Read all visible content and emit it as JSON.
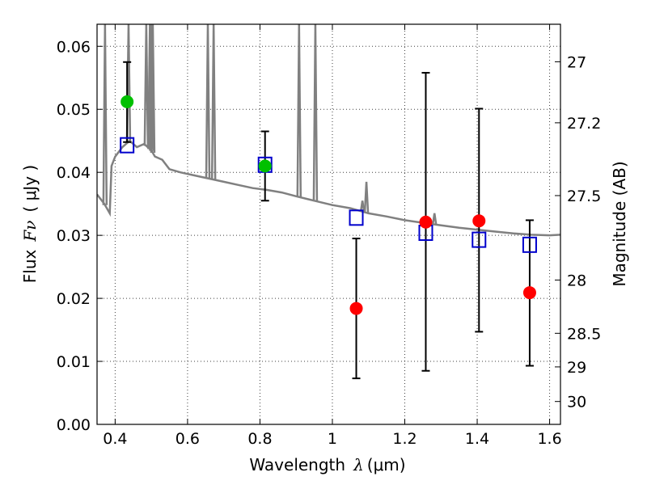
{
  "chart_data": {
    "type": "scatter",
    "xlabel": "Wavelength",
    "xlabel_symbol": "λ",
    "xlabel_unit": "(μm)",
    "ylabel": "Flux",
    "ylabel_symbol": "Fν",
    "ylabel_unit": "( μJy )",
    "ylabel_right": "Magnitude (AB)",
    "xlim": [
      0.35,
      1.63
    ],
    "ylim": [
      0.0,
      0.0635
    ],
    "x_ticks": [
      0.4,
      0.6,
      0.8,
      1.0,
      1.2,
      1.4,
      1.6
    ],
    "x_tick_labels": [
      "0.4",
      "0.6",
      "0.8",
      "1",
      "1.2",
      "1.4",
      "1.6"
    ],
    "y_ticks": [
      0.0,
      0.01,
      0.02,
      0.03,
      0.04,
      0.05,
      0.06
    ],
    "y_tick_labels": [
      "0.00",
      "0.01",
      "0.02",
      "0.03",
      "0.04",
      "0.05",
      "0.06"
    ],
    "right_ticks": [
      {
        "mag": 27,
        "label": "27"
      },
      {
        "mag": 27.2,
        "label": "27.2"
      },
      {
        "mag": 27.5,
        "label": "27.5"
      },
      {
        "mag": 28,
        "label": "28"
      },
      {
        "mag": 28.5,
        "label": "28.5"
      },
      {
        "mag": 29,
        "label": "29"
      },
      {
        "mag": 30,
        "label": "30"
      }
    ],
    "grid": true,
    "series": [
      {
        "name": "model_spectrum",
        "style": "line",
        "color": "#808080",
        "points": [
          [
            0.35,
            0.0365
          ],
          [
            0.37,
            0.035
          ],
          [
            0.385,
            0.0335
          ],
          [
            0.39,
            0.041
          ],
          [
            0.4,
            0.0425
          ],
          [
            0.42,
            0.044
          ],
          [
            0.44,
            0.045
          ],
          [
            0.46,
            0.044
          ],
          [
            0.48,
            0.0445
          ],
          [
            0.5,
            0.0435
          ],
          [
            0.51,
            0.0425
          ],
          [
            0.53,
            0.042
          ],
          [
            0.55,
            0.0405
          ],
          [
            0.58,
            0.04
          ],
          [
            0.62,
            0.0395
          ],
          [
            0.66,
            0.039
          ],
          [
            0.7,
            0.0385
          ],
          [
            0.74,
            0.038
          ],
          [
            0.78,
            0.0375
          ],
          [
            0.82,
            0.0372
          ],
          [
            0.86,
            0.0368
          ],
          [
            0.9,
            0.0362
          ],
          [
            0.95,
            0.0355
          ],
          [
            1.0,
            0.0348
          ],
          [
            1.05,
            0.0343
          ],
          [
            1.1,
            0.0335
          ],
          [
            1.15,
            0.033
          ],
          [
            1.2,
            0.0324
          ],
          [
            1.25,
            0.032
          ],
          [
            1.3,
            0.0316
          ],
          [
            1.35,
            0.0312
          ],
          [
            1.4,
            0.0309
          ],
          [
            1.45,
            0.0306
          ],
          [
            1.5,
            0.0303
          ],
          [
            1.55,
            0.0301
          ],
          [
            1.6,
            0.03
          ],
          [
            1.63,
            0.0301
          ]
        ]
      },
      {
        "name": "emission_lines",
        "style": "spikes",
        "color": "#808080",
        "lines": [
          {
            "x": 0.372,
            "peak": 0.0635
          },
          {
            "x": 0.437,
            "peak": 0.0635
          },
          {
            "x": 0.486,
            "peak": 0.0635
          },
          {
            "x": 0.496,
            "peak": 0.0635
          },
          {
            "x": 0.501,
            "peak": 0.0635
          },
          {
            "x": 0.504,
            "peak": 0.0635
          },
          {
            "x": 0.656,
            "peak": 0.0635
          },
          {
            "x": 0.672,
            "peak": 0.0635
          },
          {
            "x": 0.908,
            "peak": 0.0635
          },
          {
            "x": 0.953,
            "peak": 0.0635
          },
          {
            "x": 1.083,
            "peak": 0.0355
          },
          {
            "x": 1.094,
            "peak": 0.0385
          },
          {
            "x": 1.282,
            "peak": 0.0335
          }
        ]
      },
      {
        "name": "model_photometry",
        "style": "open_square",
        "color": "#0000cc",
        "points": [
          [
            0.433,
            0.0443
          ],
          [
            0.814,
            0.0412
          ],
          [
            1.066,
            0.0328
          ],
          [
            1.258,
            0.0304
          ],
          [
            1.405,
            0.0293
          ],
          [
            1.545,
            0.0285
          ]
        ]
      },
      {
        "name": "observed_low_z",
        "style": "filled_circle",
        "color": "#00c000",
        "points": [
          {
            "x": 0.433,
            "y": 0.0512,
            "lo": 0.0448,
            "hi": 0.0575
          },
          {
            "x": 0.814,
            "y": 0.041,
            "lo": 0.0355,
            "hi": 0.0465
          }
        ]
      },
      {
        "name": "observed_nir",
        "style": "filled_circle",
        "color": "#ff0000",
        "points": [
          {
            "x": 1.066,
            "y": 0.0184,
            "lo": 0.0073,
            "hi": 0.0295
          },
          {
            "x": 1.258,
            "y": 0.0321,
            "lo": 0.0085,
            "hi": 0.0558
          },
          {
            "x": 1.405,
            "y": 0.0323,
            "lo": 0.0147,
            "hi": 0.0501
          },
          {
            "x": 1.545,
            "y": 0.0209,
            "lo": 0.0093,
            "hi": 0.0324
          }
        ]
      }
    ]
  }
}
